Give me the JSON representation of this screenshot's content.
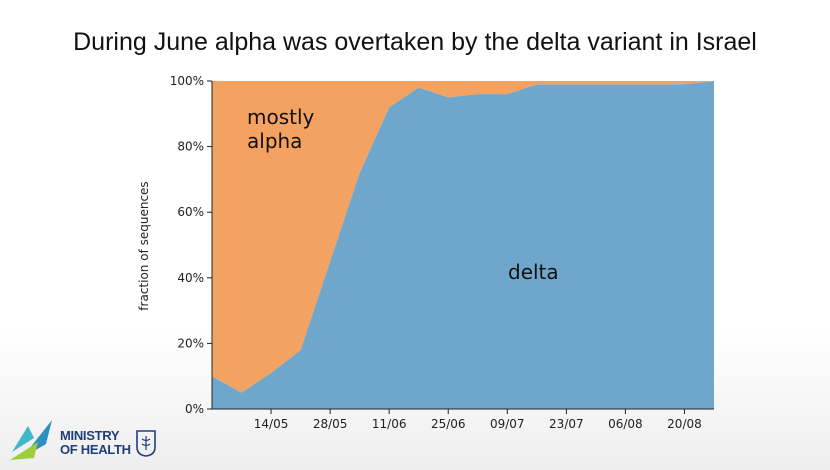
{
  "title": "During June alpha was overtaken by the delta variant in Israel",
  "chart_data": {
    "type": "area",
    "title": "",
    "xlabel": "",
    "ylabel": "fraction of sequences",
    "x_tick_labels": [
      "14/05",
      "28/05",
      "11/06",
      "25/06",
      "09/07",
      "23/07",
      "06/08",
      "20/08"
    ],
    "y_tick_labels": [
      "0%",
      "20%",
      "40%",
      "60%",
      "80%",
      "100%"
    ],
    "ylim": [
      0,
      100
    ],
    "stacked": true,
    "x": [
      "30/04",
      "07/05",
      "14/05",
      "21/05",
      "28/05",
      "04/06",
      "11/06",
      "18/06",
      "25/06",
      "02/07",
      "09/07",
      "16/07",
      "23/07",
      "30/07",
      "06/08",
      "13/08",
      "20/08",
      "27/08"
    ],
    "series": [
      {
        "name": "delta",
        "color": "#6fa6cb",
        "values": [
          10,
          5,
          11,
          18,
          45,
          72,
          92,
          98,
          95,
          96,
          96,
          99,
          99,
          99,
          99,
          99,
          99,
          100
        ]
      },
      {
        "name": "mostly alpha",
        "color": "#f4a262",
        "values": [
          90,
          95,
          89,
          82,
          55,
          28,
          8,
          2,
          5,
          4,
          4,
          1,
          1,
          1,
          1,
          1,
          1,
          0
        ]
      }
    ],
    "annotations": [
      {
        "label_lines": [
          "mostly",
          "alpha"
        ]
      },
      {
        "label_lines": [
          "delta"
        ]
      }
    ]
  },
  "logo": {
    "line1": "MINISTRY",
    "line2": "OF HEALTH"
  }
}
